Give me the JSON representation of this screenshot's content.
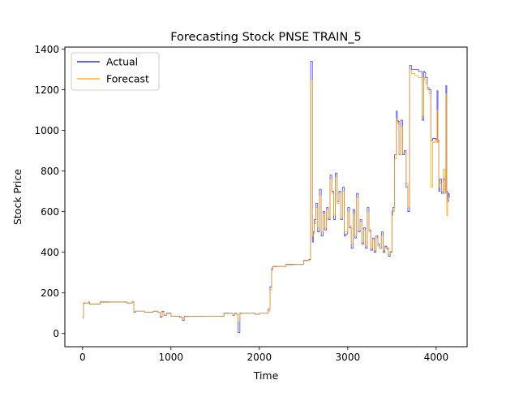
{
  "chart_data": {
    "type": "line",
    "title": "Forecasting Stock PNSE TRAIN_5",
    "xlabel": "Time",
    "ylabel": "Stock Price",
    "xlim": [
      -200,
      4350
    ],
    "ylim": [
      -65,
      1410
    ],
    "xticks": [
      0,
      1000,
      2000,
      3000,
      4000
    ],
    "yticks": [
      0,
      200,
      400,
      600,
      800,
      1000,
      1200,
      1400
    ],
    "grid": false,
    "legend_position": "top-left",
    "series": [
      {
        "name": "Actual",
        "color": "#0000ff",
        "x": [
          0,
          10,
          30,
          70,
          80,
          100,
          200,
          300,
          400,
          500,
          560,
          580,
          600,
          700,
          800,
          850,
          880,
          900,
          920,
          950,
          1000,
          1100,
          1130,
          1150,
          1200,
          1300,
          1400,
          1500,
          1550,
          1600,
          1650,
          1700,
          1720,
          1740,
          1760,
          1780,
          1800,
          1850,
          1900,
          1950,
          2000,
          2050,
          2100,
          2120,
          2140,
          2150,
          2200,
          2300,
          2400,
          2500,
          2540,
          2560,
          2580,
          2600,
          2610,
          2620,
          2640,
          2660,
          2680,
          2700,
          2720,
          2740,
          2760,
          2780,
          2800,
          2820,
          2840,
          2860,
          2880,
          2900,
          2920,
          2940,
          2960,
          2980,
          3000,
          3020,
          3040,
          3060,
          3080,
          3100,
          3120,
          3140,
          3160,
          3180,
          3200,
          3220,
          3240,
          3260,
          3280,
          3300,
          3320,
          3340,
          3360,
          3380,
          3400,
          3420,
          3440,
          3460,
          3480,
          3500,
          3510,
          3530,
          3550,
          3560,
          3570,
          3580,
          3600,
          3620,
          3640,
          3660,
          3680,
          3700,
          3720,
          3760,
          3800,
          3840,
          3860,
          3870,
          3880,
          3900,
          3920,
          3940,
          3960,
          3980,
          4000,
          4010,
          4020,
          4030,
          4040,
          4060,
          4080,
          4100,
          4110,
          4120,
          4130,
          4140,
          4150
        ],
        "y": [
          80,
          150,
          150,
          155,
          145,
          145,
          155,
          155,
          155,
          150,
          155,
          105,
          110,
          105,
          110,
          105,
          80,
          110,
          90,
          100,
          85,
          80,
          65,
          85,
          85,
          85,
          85,
          85,
          85,
          100,
          100,
          90,
          100,
          95,
          5,
          100,
          100,
          100,
          100,
          95,
          100,
          100,
          120,
          230,
          320,
          330,
          330,
          340,
          340,
          360,
          360,
          365,
          1340,
          450,
          500,
          560,
          640,
          500,
          710,
          480,
          600,
          510,
          620,
          560,
          780,
          700,
          560,
          790,
          650,
          700,
          560,
          720,
          480,
          490,
          620,
          520,
          420,
          610,
          470,
          690,
          500,
          560,
          440,
          520,
          420,
          620,
          510,
          410,
          470,
          400,
          480,
          440,
          420,
          500,
          400,
          430,
          420,
          380,
          400,
          600,
          620,
          880,
          1095,
          1050,
          1045,
          880,
          1050,
          880,
          900,
          720,
          600,
          1320,
          1300,
          1300,
          1290,
          1050,
          1290,
          1285,
          1260,
          1210,
          1200,
          950,
          960,
          960,
          955,
          1195,
          950,
          700,
          760,
          690,
          760,
          690,
          1220,
          700,
          650,
          690,
          670
        ]
      },
      {
        "name": "Forecast",
        "color": "#ffa500",
        "x": [
          0,
          10,
          30,
          70,
          80,
          100,
          200,
          300,
          400,
          500,
          560,
          580,
          600,
          700,
          800,
          850,
          880,
          900,
          920,
          950,
          1000,
          1100,
          1130,
          1150,
          1200,
          1300,
          1400,
          1500,
          1550,
          1600,
          1650,
          1700,
          1720,
          1740,
          1760,
          1780,
          1800,
          1850,
          1900,
          1950,
          2000,
          2050,
          2100,
          2120,
          2140,
          2150,
          2200,
          2300,
          2400,
          2500,
          2540,
          2560,
          2580,
          2600,
          2610,
          2620,
          2640,
          2660,
          2680,
          2700,
          2720,
          2740,
          2760,
          2780,
          2800,
          2820,
          2840,
          2860,
          2880,
          2900,
          2920,
          2940,
          2960,
          2980,
          3000,
          3020,
          3040,
          3060,
          3080,
          3100,
          3120,
          3140,
          3160,
          3180,
          3200,
          3220,
          3240,
          3260,
          3280,
          3300,
          3320,
          3340,
          3360,
          3380,
          3400,
          3420,
          3440,
          3460,
          3480,
          3500,
          3510,
          3530,
          3550,
          3560,
          3570,
          3580,
          3600,
          3620,
          3640,
          3660,
          3680,
          3700,
          3720,
          3760,
          3800,
          3840,
          3860,
          3870,
          3880,
          3900,
          3920,
          3940,
          3960,
          3980,
          4000,
          4010,
          4020,
          4030,
          4040,
          4060,
          4080,
          4100,
          4110,
          4120,
          4130,
          4140,
          4150
        ],
        "y": [
          75,
          148,
          150,
          153,
          146,
          146,
          153,
          154,
          154,
          151,
          153,
          108,
          110,
          106,
          109,
          106,
          85,
          105,
          92,
          98,
          86,
          82,
          72,
          83,
          84,
          84,
          85,
          85,
          86,
          98,
          99,
          92,
          98,
          96,
          60,
          97,
          99,
          99,
          99,
          96,
          99,
          100,
          110,
          215,
          310,
          328,
          330,
          338,
          340,
          358,
          360,
          362,
          1250,
          480,
          490,
          540,
          620,
          520,
          680,
          500,
          590,
          520,
          610,
          570,
          760,
          690,
          580,
          770,
          640,
          690,
          570,
          700,
          500,
          500,
          600,
          530,
          440,
          590,
          480,
          670,
          510,
          550,
          450,
          510,
          430,
          600,
          500,
          420,
          460,
          410,
          470,
          430,
          420,
          480,
          410,
          425,
          415,
          390,
          405,
          580,
          600,
          860,
          1060,
          1040,
          1030,
          880,
          1020,
          890,
          890,
          740,
          620,
          1300,
          1280,
          1270,
          1260,
          1070,
          1260,
          1250,
          1230,
          1200,
          1180,
          720,
          940,
          950,
          940,
          1100,
          940,
          720,
          740,
          700,
          810,
          690,
          1180,
          580,
          660,
          680,
          690
        ]
      }
    ]
  }
}
